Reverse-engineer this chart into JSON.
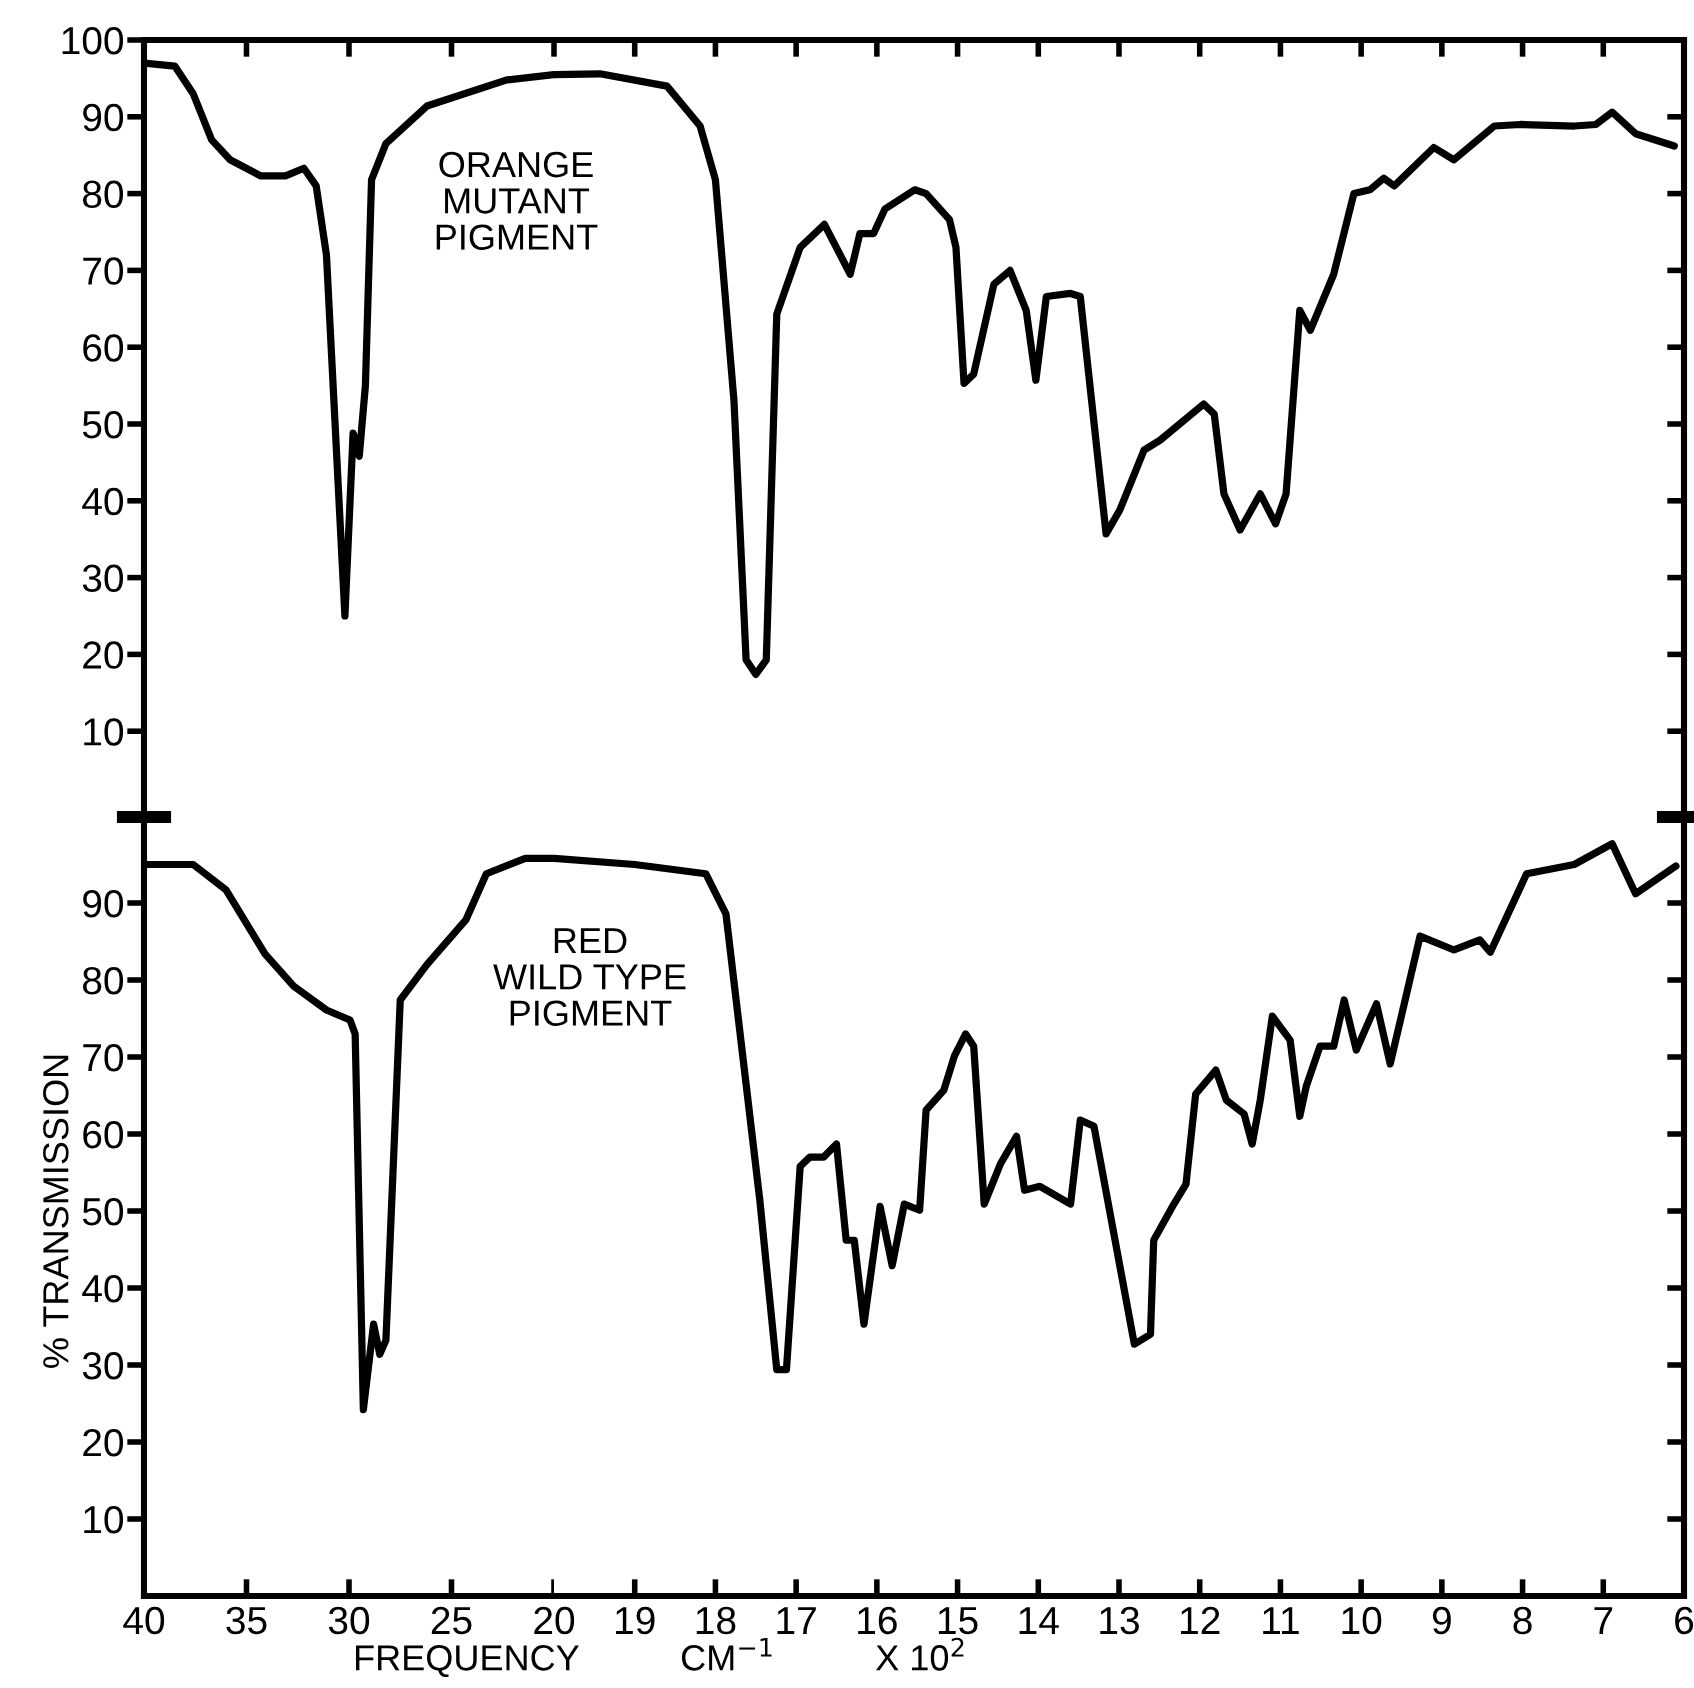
{
  "chart_data": [
    {
      "type": "line",
      "tick_labels": "y",
      "xlim": [
        40,
        20
      ],
      "ylim": [
        0,
        100
      ],
      "xticks": [
        {
          "value": 35,
          "label": null
        },
        {
          "value": 30,
          "label": null
        },
        {
          "value": 25,
          "label": null
        }
      ],
      "yticks": [
        10,
        20,
        30,
        40,
        50,
        60,
        70,
        80,
        90,
        100
      ],
      "marker": "none",
      "line_style": "solid",
      "series": [
        {
          "name": "ORANGE\nMUTANT\nPIGMENT",
          "color": "#000000",
          "x": [
            40,
            38.5,
            37.6,
            36.7,
            35.8,
            34.3,
            33.1,
            32.2,
            31.6,
            31.1,
            30.2,
            29.8,
            29.7,
            29.5,
            29.2,
            28.9,
            28.2,
            26.2,
            22.3,
            20
          ],
          "values": [
            97,
            96.6,
            93,
            87,
            84.4,
            82.3,
            82.3,
            83.3,
            81,
            72,
            25,
            48.8,
            48,
            45.8,
            55,
            81.8,
            86.5,
            91.4,
            94.8,
            95.5
          ]
        }
      ]
    },
    {
      "type": "line",
      "tick_labels": false,
      "xlim": [
        20,
        6
      ],
      "ylim": [
        0,
        100
      ],
      "xticks": [
        {
          "value": 20,
          "label": null
        },
        {
          "value": 19,
          "label": null
        },
        {
          "value": 18,
          "label": null
        },
        {
          "value": 17,
          "label": null
        },
        {
          "value": 16,
          "label": null
        },
        {
          "value": 15,
          "label": null
        },
        {
          "value": 14,
          "label": null
        },
        {
          "value": 13,
          "label": null
        },
        {
          "value": 12,
          "label": null
        },
        {
          "value": 11,
          "label": null
        },
        {
          "value": 10,
          "label": null
        },
        {
          "value": 9,
          "label": null
        },
        {
          "value": 8,
          "label": null
        },
        {
          "value": 7,
          "label": null
        }
      ],
      "yticks": [
        {
          "value": 10,
          "label": null
        },
        {
          "value": 20,
          "label": null
        },
        {
          "value": 30,
          "label": null
        },
        {
          "value": 40,
          "label": null
        },
        {
          "value": 50,
          "label": null
        },
        {
          "value": 60,
          "label": null
        },
        {
          "value": 70,
          "label": null
        },
        {
          "value": 80,
          "label": null
        },
        {
          "value": 90,
          "label": null
        }
      ],
      "marker": "none",
      "line_style": "solid",
      "series": [
        {
          "color": "#000000",
          "x": [
            20,
            19.43,
            18.6,
            18.19,
            18.0,
            17.77,
            17.62,
            17.5,
            17.37,
            17.24,
            16.95,
            16.65,
            16.33,
            16.21,
            16.04,
            15.9,
            15.53,
            15.39,
            15.1,
            15.02,
            14.92,
            14.8,
            14.55,
            14.35,
            14.15,
            14.03,
            13.9,
            13.6,
            13.48,
            13.16,
            12.99,
            12.69,
            12.49,
            11.95,
            11.82,
            11.7,
            11.5,
            11.25,
            11.06,
            10.93,
            10.76,
            10.63,
            10.34,
            10.09,
            9.89,
            9.72,
            9.59,
            9.1,
            8.85,
            8.35,
            8.03,
            7.36,
            7.09,
            6.89,
            6.6,
            6.12
          ],
          "values": [
            95.5,
            95.6,
            94,
            88.8,
            81.8,
            53,
            19.3,
            17.4,
            19.3,
            64.3,
            73,
            76,
            69.5,
            74.8,
            74.8,
            78,
            80.5,
            80,
            76.6,
            73,
            55.3,
            56.5,
            68.2,
            70,
            64.8,
            55.7,
            66.6,
            67,
            66.6,
            35.7,
            38.8,
            46.6,
            47.9,
            52.6,
            51.3,
            40.9,
            36.2,
            40.9,
            37,
            40.9,
            64.8,
            62.2,
            69.5,
            80,
            80.5,
            82,
            81,
            86,
            84.4,
            88.8,
            89,
            88.8,
            89,
            90.6,
            87.8,
            86.2
          ]
        }
      ]
    },
    {
      "type": "line",
      "xlim": [
        40,
        20
      ],
      "ylim": [
        0,
        100
      ],
      "xlabel": "FREQUENCY          CM$^{−1}$          X 10$^{2}$",
      "ylabel": "% TRANSMISSION",
      "xticks": [
        40,
        35,
        30,
        25,
        20
      ],
      "yticks": [
        10,
        20,
        30,
        40,
        50,
        60,
        70,
        80,
        90
      ],
      "marker": "none",
      "line_style": "solid",
      "series": [
        {
          "color": "#000000",
          "x": [
            40,
            37.6,
            36.0,
            34.1,
            32.7,
            31.1,
            29.95,
            29.7,
            29.3,
            28.8,
            28.5,
            28.2,
            27.5,
            26.2,
            24.3,
            23.3,
            21.4,
            20
          ],
          "values": [
            95,
            95,
            91.7,
            83.4,
            79.2,
            76.1,
            74.8,
            73,
            24.2,
            35.3,
            31.4,
            33.2,
            77.4,
            82,
            87.8,
            93.8,
            95.8,
            95.8
          ]
        }
      ]
    },
    {
      "type": "line",
      "tick_labels": "x",
      "xlim": [
        20,
        6
      ],
      "ylim": [
        0,
        100
      ],
      "xticks": [
        19,
        18,
        17,
        16,
        15,
        14,
        13,
        12,
        11,
        10,
        9,
        8,
        7,
        6
      ],
      "yticks": [
        {
          "value": 10,
          "label": null
        },
        {
          "value": 20,
          "label": null
        },
        {
          "value": 30,
          "label": null
        },
        {
          "value": 40,
          "label": null
        },
        {
          "value": 50,
          "label": null
        },
        {
          "value": 60,
          "label": null
        },
        {
          "value": 70,
          "label": null
        },
        {
          "value": 80,
          "label": null
        },
        {
          "value": 90,
          "label": null
        }
      ],
      "marker": "none",
      "line_style": "solid",
      "series": [
        {
          "name": "RED\nWILD TYPE\nPIGMENT",
          "color": "#000000",
          "x": [
            20,
            19.0,
            18.12,
            17.87,
            17.45,
            17.24,
            17.12,
            16.95,
            16.83,
            16.66,
            16.5,
            16.38,
            16.28,
            16.16,
            15.96,
            15.81,
            15.66,
            15.47,
            15.39,
            15.17,
            15.04,
            14.9,
            14.8,
            14.67,
            14.47,
            14.27,
            14.17,
            13.98,
            13.6,
            13.48,
            13.31,
            12.81,
            12.61,
            12.57,
            12.32,
            12.17,
            12.05,
            11.8,
            11.67,
            11.45,
            11.35,
            11.25,
            11.1,
            10.88,
            10.76,
            10.68,
            10.51,
            10.34,
            10.21,
            10.06,
            9.81,
            9.64,
            9.27,
            8.85,
            8.53,
            8.4,
            7.95,
            7.36,
            6.89,
            6.6,
            6.1
          ],
          "values": [
            95.8,
            95,
            93.8,
            88.6,
            51.4,
            29.4,
            29.4,
            55.8,
            57,
            57,
            58.7,
            46.2,
            46.2,
            35.3,
            50.6,
            42.9,
            50.9,
            50.1,
            63.1,
            65.7,
            70.1,
            73,
            71.4,
            50.9,
            56.1,
            59.7,
            52.7,
            53.2,
            50.9,
            61.8,
            61,
            32.7,
            34,
            46.2,
            50.9,
            53.5,
            65.2,
            68.3,
            64.4,
            62.6,
            58.7,
            64.4,
            75.3,
            72.2,
            62.3,
            66.2,
            71.4,
            71.4,
            77.4,
            70.9,
            76.9,
            69.1,
            85.7,
            83.9,
            85.2,
            83.6,
            93.8,
            95,
            97.7,
            91.2,
            94.8
          ]
        }
      ]
    }
  ]
}
